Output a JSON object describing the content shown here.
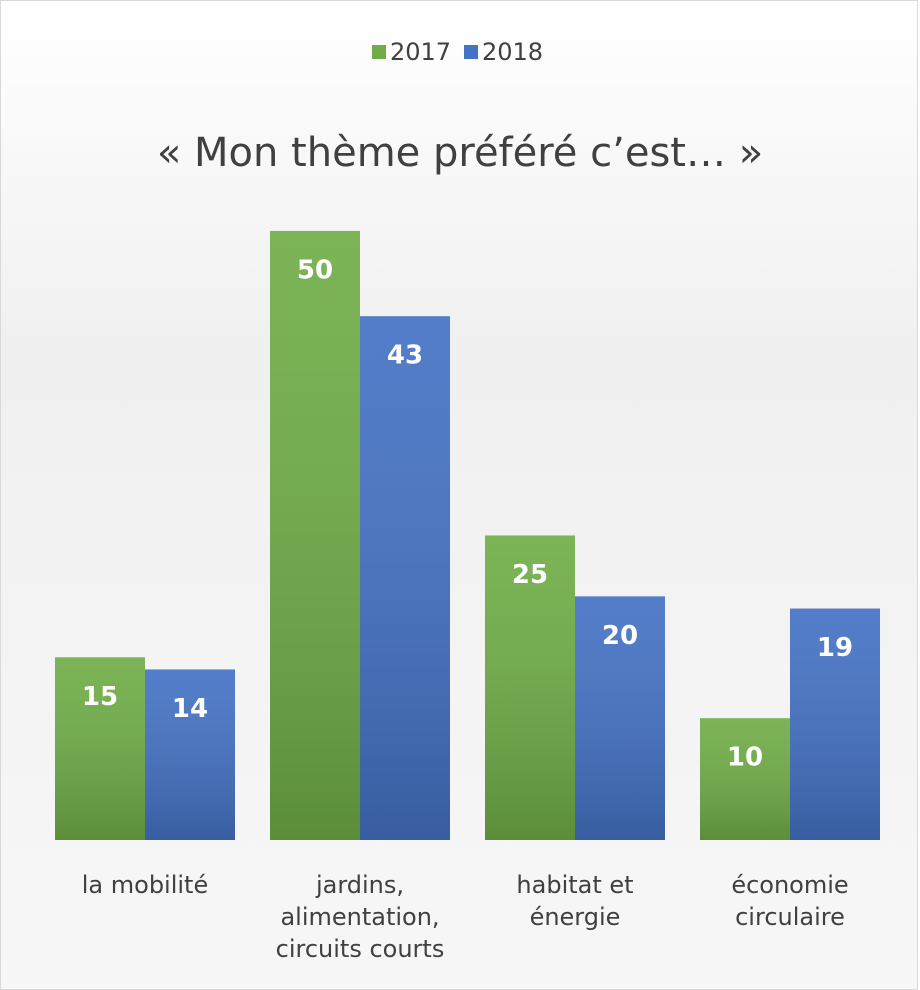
{
  "chart_data": {
    "type": "bar",
    "title": "« Mon thème préféré c’est… »",
    "categories": [
      "la mobilité",
      "jardins, alimentation, circuits courts",
      "habitat et énergie",
      "économie circulaire"
    ],
    "series": [
      {
        "name": "2017",
        "color": "#70ad47",
        "values": [
          15,
          50,
          25,
          10
        ]
      },
      {
        "name": "2018",
        "color": "#4472c4",
        "values": [
          14,
          43,
          20,
          19
        ]
      }
    ],
    "ylim": [
      0,
      55
    ],
    "legend": "top"
  }
}
